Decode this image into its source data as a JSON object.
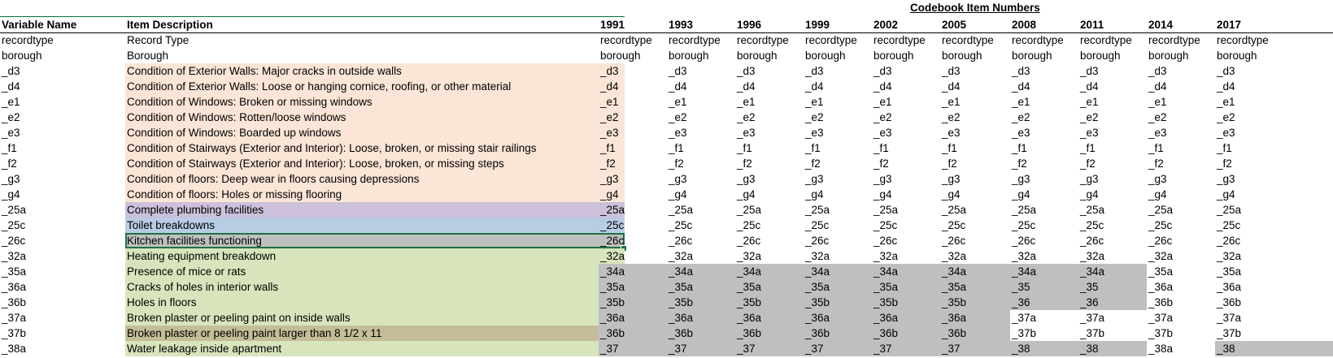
{
  "sheet": {
    "codebook_title": "Codebook Item Numbers",
    "headers": {
      "variable_name": "Variable Name",
      "item_description": "Item Description",
      "years": [
        "1991",
        "1993",
        "1996",
        "1999",
        "2002",
        "2005",
        "2008",
        "2011",
        "2014",
        "2017"
      ]
    },
    "colors": {
      "peach": "#fbe5d6",
      "purple": "#ccc0da",
      "blue": "#b8cce4",
      "gray": "#bfbfbf",
      "green": "#d8e4bc",
      "tan": "#c4bd97",
      "selection": "#1e7145"
    },
    "rows": [
      {
        "var": "recordtype",
        "desc": "Record Type",
        "color": "none",
        "codes": [
          "recordtype",
          "recordtype",
          "recordtype",
          "recordtype",
          "recordtype",
          "recordtype",
          "recordtype",
          "recordtype",
          "recordtype",
          "recordtype"
        ],
        "gray": [
          0,
          0,
          0,
          0,
          0,
          0,
          0,
          0,
          0,
          0
        ]
      },
      {
        "var": "borough",
        "desc": "Borough",
        "color": "none",
        "codes": [
          "borough",
          "borough",
          "borough",
          "borough",
          "borough",
          "borough",
          "borough",
          "borough",
          "borough",
          "borough"
        ],
        "gray": [
          0,
          0,
          0,
          0,
          0,
          0,
          0,
          0,
          0,
          0
        ]
      },
      {
        "var": "_d3",
        "desc": "Condition of Exterior Walls: Major cracks in outside walls",
        "color": "peach",
        "codes": [
          "_d3",
          "_d3",
          "_d3",
          "_d3",
          "_d3",
          "_d3",
          "_d3",
          "_d3",
          "_d3",
          "_d3"
        ],
        "gray": [
          0,
          0,
          0,
          0,
          0,
          0,
          0,
          0,
          0,
          0
        ]
      },
      {
        "var": "_d4",
        "desc": "Condition of Exterior Walls: Loose or hanging cornice, roofing, or other material",
        "color": "peach",
        "codes": [
          "_d4",
          "_d4",
          "_d4",
          "_d4",
          "_d4",
          "_d4",
          "_d4",
          "_d4",
          "_d4",
          "_d4"
        ],
        "gray": [
          0,
          0,
          0,
          0,
          0,
          0,
          0,
          0,
          0,
          0
        ]
      },
      {
        "var": "_e1",
        "desc": "Condition of Windows: Broken or missing windows",
        "color": "peach",
        "codes": [
          "_e1",
          "_e1",
          "_e1",
          "_e1",
          "_e1",
          "_e1",
          "_e1",
          "_e1",
          "_e1",
          "_e1"
        ],
        "gray": [
          0,
          0,
          0,
          0,
          0,
          0,
          0,
          0,
          0,
          0
        ]
      },
      {
        "var": "_e2",
        "desc": "Condition of Windows: Rotten/loose windows",
        "color": "peach",
        "codes": [
          "_e2",
          "_e2",
          "_e2",
          "_e2",
          "_e2",
          "_e2",
          "_e2",
          "_e2",
          "_e2",
          "_e2"
        ],
        "gray": [
          0,
          0,
          0,
          0,
          0,
          0,
          0,
          0,
          0,
          0
        ]
      },
      {
        "var": "_e3",
        "desc": "Condition of Windows: Boarded up windows",
        "color": "peach",
        "codes": [
          "_e3",
          "_e3",
          "_e3",
          "_e3",
          "_e3",
          "_e3",
          "_e3",
          "_e3",
          "_e3",
          "_e3"
        ],
        "gray": [
          0,
          0,
          0,
          0,
          0,
          0,
          0,
          0,
          0,
          0
        ]
      },
      {
        "var": "_f1",
        "desc": "Condition of Stairways (Exterior and Interior): Loose, broken, or missing stair railings",
        "color": "peach",
        "codes": [
          "_f1",
          "_f1",
          "_f1",
          "_f1",
          "_f1",
          "_f1",
          "_f1",
          "_f1",
          "_f1",
          "_f1"
        ],
        "gray": [
          0,
          0,
          0,
          0,
          0,
          0,
          0,
          0,
          0,
          0
        ]
      },
      {
        "var": "_f2",
        "desc": "Condition of Stairways (Exterior and Interior): Loose, broken, or missing steps",
        "color": "peach",
        "codes": [
          "_f2",
          "_f2",
          "_f2",
          "_f2",
          "_f2",
          "_f2",
          "_f2",
          "_f2",
          "_f2",
          "_f2"
        ],
        "gray": [
          0,
          0,
          0,
          0,
          0,
          0,
          0,
          0,
          0,
          0
        ]
      },
      {
        "var": "_g3",
        "desc": "Condition of floors: Deep wear in floors causing depressions",
        "color": "peach",
        "codes": [
          "_g3",
          "_g3",
          "_g3",
          "_g3",
          "_g3",
          "_g3",
          "_g3",
          "_g3",
          "_g3",
          "_g3"
        ],
        "gray": [
          0,
          0,
          0,
          0,
          0,
          0,
          0,
          0,
          0,
          0
        ]
      },
      {
        "var": "_g4",
        "desc": "Condition of floors: Holes or missing flooring",
        "color": "peach",
        "codes": [
          "_g4",
          "_g4",
          "_g4",
          "_g4",
          "_g4",
          "_g4",
          "_g4",
          "_g4",
          "_g4",
          "_g4"
        ],
        "gray": [
          0,
          0,
          0,
          0,
          0,
          0,
          0,
          0,
          0,
          0
        ]
      },
      {
        "var": "_25a",
        "desc": "Complete plumbing facilities",
        "color": "purple",
        "codes": [
          "_25a",
          "_25a",
          "_25a",
          "_25a",
          "_25a",
          "_25a",
          "_25a",
          "_25a",
          "_25a",
          "_25a"
        ],
        "gray": [
          0,
          0,
          0,
          0,
          0,
          0,
          0,
          0,
          0,
          0
        ]
      },
      {
        "var": "_25c",
        "desc": "Toilet breakdowns",
        "color": "blue",
        "codes": [
          "_25c",
          "_25c",
          "_25c",
          "_25c",
          "_25c",
          "_25c",
          "_25c",
          "_25c",
          "_25c",
          "_25c"
        ],
        "gray": [
          0,
          0,
          0,
          0,
          0,
          0,
          0,
          0,
          0,
          0
        ]
      },
      {
        "var": "_26c",
        "desc": "Kitchen facilities functioning",
        "color": "gray",
        "selected": true,
        "codes": [
          "_26c",
          "_26c",
          "_26c",
          "_26c",
          "_26c",
          "_26c",
          "_26c",
          "_26c",
          "_26c",
          "_26c"
        ],
        "gray": [
          0,
          0,
          0,
          0,
          0,
          0,
          0,
          0,
          0,
          0
        ]
      },
      {
        "var": "_32a",
        "desc": "Heating equipment breakdown",
        "color": "green",
        "codes": [
          "_32a",
          "_32a",
          "_32a",
          "_32a",
          "_32a",
          "_32a",
          "_32a",
          "_32a",
          "_32a",
          "_32a"
        ],
        "gray": [
          0,
          0,
          0,
          0,
          0,
          0,
          0,
          0,
          0,
          0
        ]
      },
      {
        "var": "_35a",
        "desc": "Presence of mice or rats",
        "color": "green",
        "codes": [
          "_34a",
          "_34a",
          "_34a",
          "_34a",
          "_34a",
          "_34a",
          "_34a",
          "_34a",
          "_35a",
          "_35a"
        ],
        "gray": [
          1,
          1,
          1,
          1,
          1,
          1,
          1,
          1,
          0,
          0
        ]
      },
      {
        "var": "_36a",
        "desc": "Cracks of holes in interior walls",
        "color": "green",
        "codes": [
          "_35a",
          "_35a",
          "_35a",
          "_35a",
          "_35a",
          "_35a",
          "_35",
          "_35",
          "_36a",
          "_36a"
        ],
        "gray": [
          1,
          1,
          1,
          1,
          1,
          1,
          1,
          1,
          0,
          0
        ]
      },
      {
        "var": "_36b",
        "desc": "Holes in floors",
        "color": "green",
        "codes": [
          "_35b",
          "_35b",
          "_35b",
          "_35b",
          "_35b",
          "_35b",
          "_36",
          "_36",
          "_36b",
          "_36b"
        ],
        "gray": [
          1,
          1,
          1,
          1,
          1,
          1,
          1,
          1,
          0,
          0
        ]
      },
      {
        "var": "_37a",
        "desc": "Broken plaster or peeling paint on inside walls",
        "color": "green",
        "codes": [
          "_36a",
          "_36a",
          "_36a",
          "_36a",
          "_36a",
          "_36a",
          "_37a",
          "_37a",
          "_37a",
          "_37a"
        ],
        "gray": [
          1,
          1,
          1,
          1,
          1,
          1,
          0,
          0,
          0,
          0
        ]
      },
      {
        "var": "_37b",
        "desc": "Broken plaster or peeling paint larger than 8 1/2 x 11",
        "color": "tan",
        "codes": [
          "_36b",
          "_36b",
          "_36b",
          "_36b",
          "_36b",
          "_36b",
          "_37b",
          "_37b",
          "_37b",
          "_37b"
        ],
        "gray": [
          1,
          1,
          1,
          1,
          1,
          1,
          0,
          0,
          0,
          0
        ]
      },
      {
        "var": "_38a",
        "desc": "Water leakage inside apartment",
        "color": "green",
        "codes": [
          "_37",
          "_37",
          "_37",
          "_37",
          "_37",
          "_37",
          "_38",
          "_38",
          "_38a",
          "_38"
        ],
        "gray": [
          1,
          1,
          1,
          1,
          1,
          1,
          1,
          1,
          0,
          1
        ]
      }
    ]
  }
}
